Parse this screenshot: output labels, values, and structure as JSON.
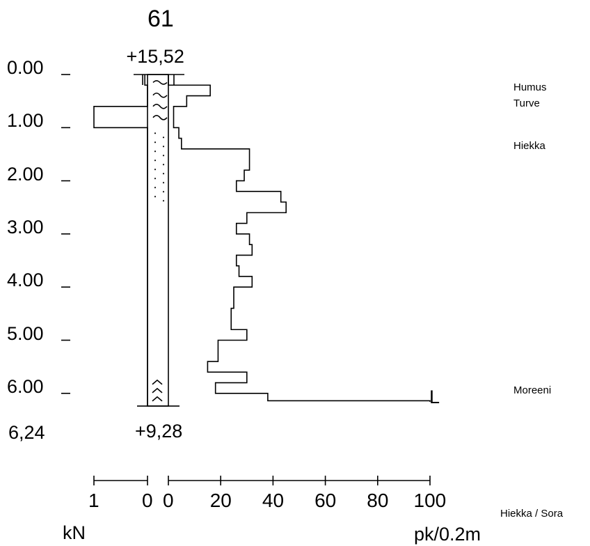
{
  "sounding": {
    "id": "61",
    "top_level": "+15,52",
    "bottom_level": "+9,28",
    "total_depth": "6,24",
    "end_marker": "L"
  },
  "depth_axis": {
    "labels": [
      "0.00",
      "1.00",
      "2.00",
      "3.00",
      "4.00",
      "5.00",
      "6.00"
    ],
    "values": [
      0,
      1,
      2,
      3,
      4,
      5,
      6
    ]
  },
  "soil_layers": [
    {
      "name": "Humus",
      "depth": 0.3
    },
    {
      "name": "Turve",
      "depth": 0.6
    },
    {
      "name": "Hiekka",
      "depth": 1.4
    },
    {
      "name": "Moreeni",
      "depth": 6.0
    }
  ],
  "bottom_note": "Hiekka / Sora",
  "kn_axis": {
    "ticks": [
      1,
      0
    ],
    "tick_labels": [
      "1",
      "0"
    ],
    "unit": "kN"
  },
  "pk_axis": {
    "ticks": [
      0,
      20,
      40,
      60,
      80,
      100
    ],
    "tick_labels": [
      "0",
      "20",
      "40",
      "60",
      "80",
      "100"
    ],
    "unit": "pk/0.2m"
  },
  "chart_data": {
    "type": "step",
    "depth_unit": "m",
    "kn_profile": [
      {
        "from": 0.0,
        "to": 0.2,
        "kn": 0.05
      },
      {
        "from": 0.2,
        "to": 0.6,
        "kn": 0.0
      },
      {
        "from": 0.6,
        "to": 1.0,
        "kn": 1.0
      },
      {
        "from": 1.0,
        "to": 6.24,
        "kn": 0.0
      }
    ],
    "pk_profile": [
      {
        "from": 0.0,
        "to": 0.2,
        "pk": 0
      },
      {
        "from": 0.2,
        "to": 0.4,
        "pk": 16
      },
      {
        "from": 0.4,
        "to": 0.6,
        "pk": 7
      },
      {
        "from": 0.6,
        "to": 1.0,
        "pk": 2
      },
      {
        "from": 1.0,
        "to": 1.2,
        "pk": 4
      },
      {
        "from": 1.2,
        "to": 1.4,
        "pk": 5
      },
      {
        "from": 1.4,
        "to": 1.8,
        "pk": 31
      },
      {
        "from": 1.8,
        "to": 2.0,
        "pk": 29
      },
      {
        "from": 2.0,
        "to": 2.2,
        "pk": 26
      },
      {
        "from": 2.2,
        "to": 2.4,
        "pk": 43
      },
      {
        "from": 2.4,
        "to": 2.6,
        "pk": 45
      },
      {
        "from": 2.6,
        "to": 2.8,
        "pk": 30
      },
      {
        "from": 2.8,
        "to": 3.0,
        "pk": 26
      },
      {
        "from": 3.0,
        "to": 3.2,
        "pk": 31
      },
      {
        "from": 3.2,
        "to": 3.4,
        "pk": 32
      },
      {
        "from": 3.4,
        "to": 3.6,
        "pk": 26
      },
      {
        "from": 3.6,
        "to": 3.8,
        "pk": 27
      },
      {
        "from": 3.8,
        "to": 4.0,
        "pk": 32
      },
      {
        "from": 4.0,
        "to": 4.4,
        "pk": 25
      },
      {
        "from": 4.4,
        "to": 4.8,
        "pk": 24
      },
      {
        "from": 4.8,
        "to": 5.0,
        "pk": 30
      },
      {
        "from": 5.0,
        "to": 5.4,
        "pk": 19
      },
      {
        "from": 5.4,
        "to": 5.6,
        "pk": 15
      },
      {
        "from": 5.6,
        "to": 5.8,
        "pk": 30
      },
      {
        "from": 5.8,
        "to": 6.0,
        "pk": 18
      },
      {
        "from": 6.0,
        "to": 6.14,
        "pk": 38
      },
      {
        "from": 6.14,
        "to": 6.16,
        "pk": 100
      }
    ],
    "soil_symbols": [
      {
        "type": "humus",
        "from": 0.0,
        "to": 0.3
      },
      {
        "type": "peat",
        "from": 0.3,
        "to": 0.9
      },
      {
        "type": "sand",
        "from": 1.0,
        "to": 2.3
      },
      {
        "type": "till",
        "from": 5.7,
        "to": 6.1
      }
    ]
  }
}
